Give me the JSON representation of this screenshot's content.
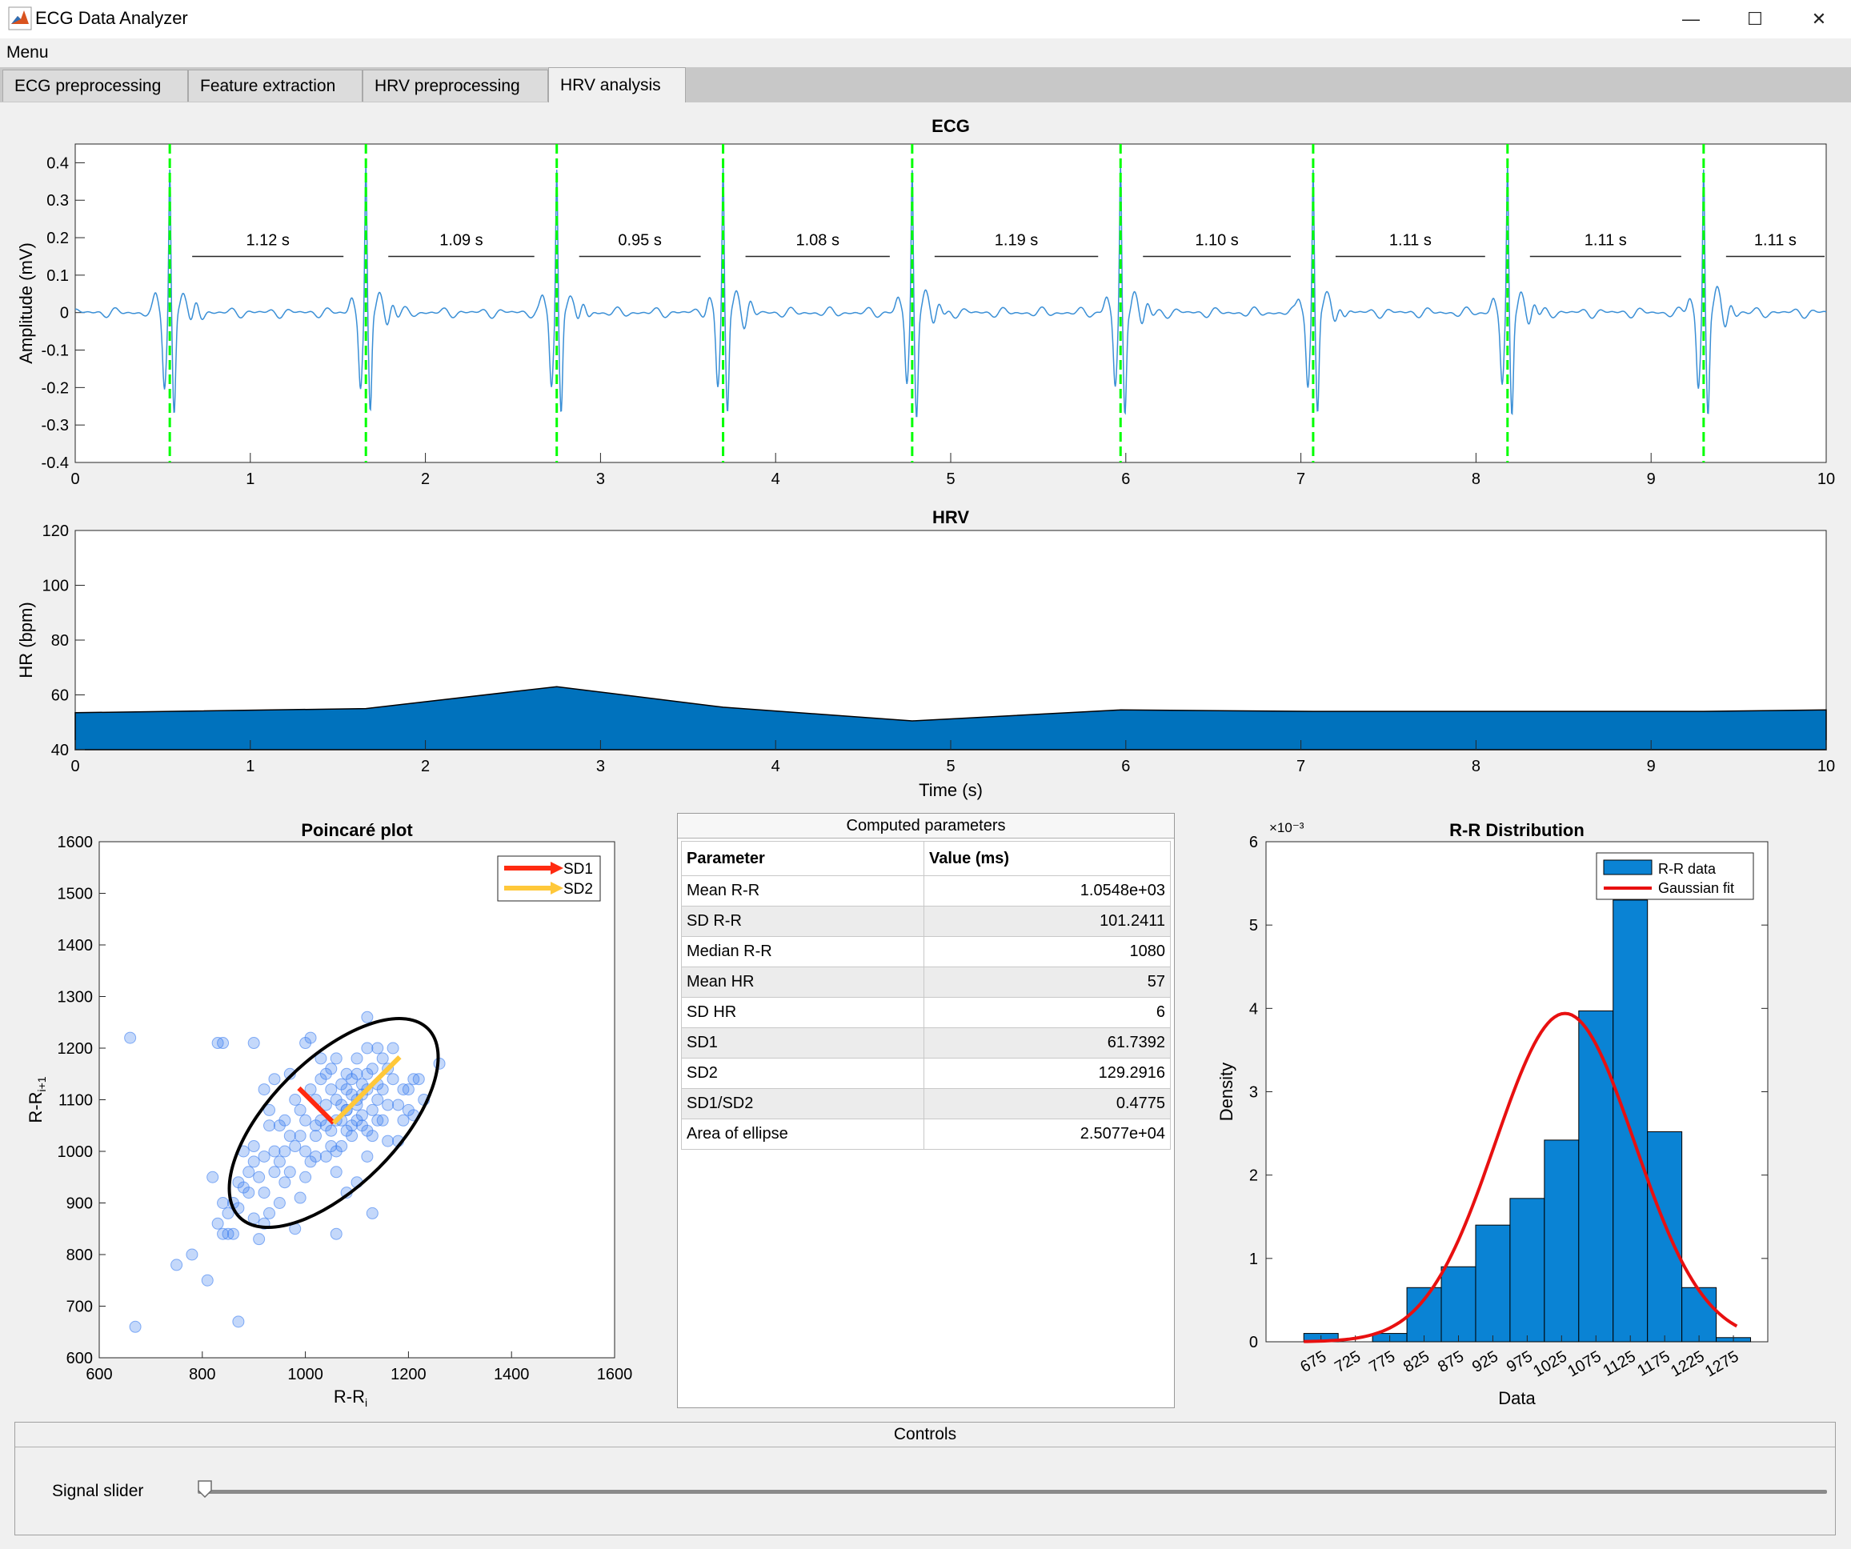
{
  "window": {
    "title": "ECG Data Analyzer",
    "minimize": "—",
    "maximize": "☐",
    "close": "✕",
    "icon": "matlab-icon"
  },
  "menu": {
    "label": "Menu"
  },
  "tabs": [
    {
      "label": "ECG preprocessing"
    },
    {
      "label": "Feature extraction"
    },
    {
      "label": "HRV preprocessing"
    },
    {
      "label": "HRV analysis"
    }
  ],
  "active_tab": "HRV analysis",
  "params_table": {
    "title": "Computed parameters",
    "headers": [
      "Parameter",
      "Value (ms)"
    ],
    "rows": [
      [
        "Mean R-R",
        "1.0548e+03"
      ],
      [
        "SD R-R",
        "101.2411"
      ],
      [
        "Median R-R",
        "1080"
      ],
      [
        "Mean HR",
        "57"
      ],
      [
        "SD HR",
        "6"
      ],
      [
        "SD1",
        "61.7392"
      ],
      [
        "SD2",
        "129.2916"
      ],
      [
        "SD1/SD2",
        "0.4775"
      ],
      [
        "Area of ellipse",
        "2.5077e+04"
      ]
    ]
  },
  "controls": {
    "title": "Controls",
    "slider_label": "Signal slider",
    "slider_value": 0
  },
  "colors": {
    "ecg_line": "#3a8fd6",
    "r_peak_line": "#00ff00",
    "hrv_fill": "#0072bd",
    "sd1": "#ff2a10",
    "sd2": "#ffc83a",
    "fit": "#e81010",
    "bars": "#0a83d4"
  },
  "chart_data": [
    {
      "type": "line",
      "title": "ECG",
      "xlabel": "",
      "ylabel": "Amplitude (mV)",
      "xlim": [
        0,
        10
      ],
      "ylim": [
        -0.4,
        0.45
      ],
      "xticks": [
        "0",
        "1",
        "2",
        "3",
        "4",
        "5",
        "6",
        "7",
        "8",
        "9",
        "10"
      ],
      "yticks": [
        "-0.4",
        "-0.3",
        "-0.2",
        "-0.1",
        "0",
        "0.1",
        "0.2",
        "0.3",
        "0.4"
      ],
      "r_peaks": [
        0.54,
        1.66,
        2.75,
        3.7,
        4.78,
        5.97,
        7.07,
        8.18,
        9.3
      ],
      "rr_labels": [
        "1.12 s",
        "1.09 s",
        "0.95 s",
        "1.08 s",
        "1.19 s",
        "1.10 s",
        "1.11 s",
        "1.11 s",
        "1.11 s"
      ]
    },
    {
      "type": "area",
      "title": "HRV",
      "xlabel": "Time (s)",
      "ylabel": "HR (bpm)",
      "xlim": [
        0,
        10
      ],
      "ylim": [
        40,
        120
      ],
      "xticks": [
        "0",
        "1",
        "2",
        "3",
        "4",
        "5",
        "6",
        "7",
        "8",
        "9",
        "10"
      ],
      "yticks": [
        "40",
        "60",
        "80",
        "100",
        "120"
      ],
      "x": [
        0,
        0.54,
        1.66,
        2.75,
        3.7,
        4.78,
        5.97,
        7.07,
        8.18,
        9.3,
        10
      ],
      "y": [
        53.5,
        54,
        55,
        63,
        55.5,
        50.5,
        54.5,
        54,
        54,
        54,
        54.5
      ]
    },
    {
      "type": "scatter",
      "title": "Poincaré plot",
      "xlabel": "R-R",
      "xlabel_sub": "i",
      "ylabel": "R-R",
      "ylabel_sub": "i+1",
      "xlim": [
        600,
        1600
      ],
      "ylim": [
        600,
        1600
      ],
      "xticks": [
        "600",
        "800",
        "1000",
        "1200",
        "1400",
        "1600"
      ],
      "yticks": [
        "600",
        "700",
        "800",
        "900",
        "1000",
        "1100",
        "1200",
        "1300",
        "1400",
        "1500",
        "1600"
      ],
      "legend": [
        "SD1",
        "SD2"
      ],
      "center": [
        1055,
        1055
      ],
      "sd1": 61.7392,
      "sd2": 129.2916,
      "points": [
        [
          660,
          1220
        ],
        [
          670,
          660
        ],
        [
          750,
          780
        ],
        [
          780,
          800
        ],
        [
          810,
          750
        ],
        [
          820,
          950
        ],
        [
          830,
          1210
        ],
        [
          840,
          1210
        ],
        [
          870,
          670
        ],
        [
          900,
          1210
        ],
        [
          830,
          860
        ],
        [
          840,
          840
        ],
        [
          850,
          840
        ],
        [
          860,
          840
        ],
        [
          870,
          890
        ],
        [
          880,
          930
        ],
        [
          890,
          920
        ],
        [
          900,
          870
        ],
        [
          910,
          830
        ],
        [
          920,
          860
        ],
        [
          930,
          880
        ],
        [
          940,
          1000
        ],
        [
          950,
          900
        ],
        [
          960,
          940
        ],
        [
          970,
          960
        ],
        [
          980,
          850
        ],
        [
          990,
          910
        ],
        [
          1000,
          1210
        ],
        [
          1010,
          1220
        ],
        [
          1020,
          990
        ],
        [
          1030,
          1060
        ],
        [
          1040,
          1050
        ],
        [
          1050,
          1040
        ],
        [
          1060,
          840
        ],
        [
          1070,
          1010
        ],
        [
          1080,
          1080
        ],
        [
          1090,
          1110
        ],
        [
          1100,
          1060
        ],
        [
          1110,
          1130
        ],
        [
          1120,
          1260
        ],
        [
          1130,
          880
        ],
        [
          1140,
          1100
        ],
        [
          1150,
          1120
        ],
        [
          1160,
          1160
        ],
        [
          1170,
          1140
        ],
        [
          1180,
          1090
        ],
        [
          1190,
          1060
        ],
        [
          1200,
          1120
        ],
        [
          1210,
          1070
        ],
        [
          1220,
          1140
        ],
        [
          1230,
          1100
        ],
        [
          1260,
          1170
        ],
        [
          900,
          1010
        ],
        [
          920,
          1120
        ],
        [
          940,
          1140
        ],
        [
          960,
          1060
        ],
        [
          980,
          1010
        ],
        [
          1000,
          1060
        ],
        [
          1020,
          1100
        ],
        [
          1040,
          1150
        ],
        [
          1060,
          1180
        ],
        [
          1080,
          1120
        ],
        [
          1100,
          1150
        ],
        [
          1120,
          1200
        ],
        [
          1140,
          1060
        ],
        [
          1160,
          1020
        ],
        [
          1060,
          1100
        ],
        [
          1070,
          1060
        ],
        [
          1080,
          1040
        ],
        [
          1090,
          1030
        ],
        [
          1100,
          1090
        ],
        [
          1110,
          1070
        ],
        [
          1120,
          1040
        ],
        [
          1130,
          1030
        ],
        [
          1140,
          1130
        ],
        [
          1150,
          1060
        ],
        [
          1050,
          1120
        ],
        [
          1040,
          1090
        ],
        [
          1030,
          1140
        ],
        [
          1020,
          1030
        ],
        [
          1010,
          980
        ],
        [
          1000,
          950
        ],
        [
          990,
          1030
        ],
        [
          980,
          1100
        ],
        [
          970,
          1150
        ],
        [
          960,
          1000
        ],
        [
          950,
          980
        ],
        [
          940,
          960
        ],
        [
          930,
          1050
        ],
        [
          920,
          990
        ],
        [
          910,
          950
        ],
        [
          900,
          980
        ],
        [
          890,
          960
        ],
        [
          880,
          1000
        ],
        [
          870,
          940
        ],
        [
          860,
          900
        ],
        [
          850,
          880
        ],
        [
          840,
          900
        ],
        [
          1110,
          1110
        ],
        [
          1130,
          1160
        ],
        [
          1150,
          1180
        ],
        [
          1170,
          1200
        ],
        [
          1090,
          1140
        ],
        [
          1070,
          1130
        ],
        [
          1180,
          1020
        ],
        [
          1200,
          1080
        ],
        [
          1190,
          1120
        ],
        [
          1210,
          1140
        ],
        [
          1060,
          1060
        ],
        [
          1080,
          1080
        ],
        [
          1100,
          1100
        ],
        [
          1120,
          1120
        ],
        [
          1090,
          1050
        ],
        [
          1110,
          1050
        ],
        [
          1130,
          1080
        ],
        [
          1050,
          1010
        ],
        [
          1060,
          1000
        ],
        [
          1070,
          1090
        ],
        [
          1080,
          1150
        ],
        [
          1100,
          1180
        ],
        [
          1120,
          1150
        ],
        [
          1140,
          1200
        ],
        [
          1160,
          1090
        ],
        [
          1000,
          1000
        ],
        [
          1020,
          1050
        ],
        [
          990,
          1080
        ],
        [
          1010,
          1120
        ],
        [
          1030,
          1180
        ],
        [
          1050,
          1160
        ],
        [
          970,
          1030
        ],
        [
          950,
          1050
        ],
        [
          930,
          1080
        ],
        [
          920,
          920
        ],
        [
          1040,
          990
        ],
        [
          1060,
          960
        ],
        [
          1080,
          920
        ],
        [
          1100,
          940
        ],
        [
          1120,
          990
        ]
      ]
    },
    {
      "type": "bar",
      "title": "R-R Distribution",
      "xlabel": "Data",
      "ylabel": "Density",
      "yexp": "×10⁻³",
      "ylim": [
        0,
        6
      ],
      "yticks": [
        "0",
        "1",
        "2",
        "3",
        "4",
        "5",
        "6"
      ],
      "xlim": [
        620,
        1350
      ],
      "categories": [
        "675",
        "725",
        "775",
        "825",
        "875",
        "925",
        "975",
        "1025",
        "1075",
        "1125",
        "1175",
        "1225",
        "1275"
      ],
      "bin_edges": [
        675,
        725,
        775,
        825,
        875,
        925,
        975,
        1025,
        1075,
        1125,
        1175,
        1225,
        1275
      ],
      "values": [
        0.1,
        0.0,
        0.1,
        0.65,
        0.9,
        1.4,
        1.72,
        2.42,
        3.97,
        5.3,
        2.52,
        0.65,
        0.05
      ],
      "legend": [
        "R-R data",
        "Gaussian fit"
      ],
      "fit": {
        "mean": 1055,
        "sd": 101.2411,
        "peak": 3.94
      }
    }
  ]
}
